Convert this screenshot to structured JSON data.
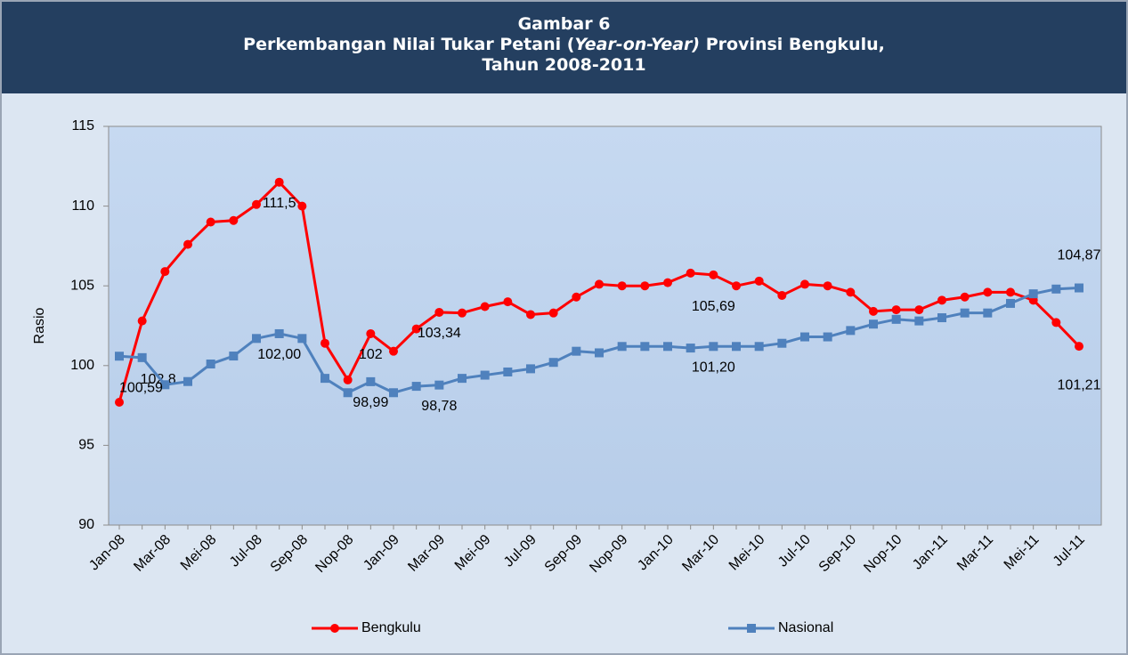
{
  "chart_data": {
    "type": "line",
    "title": [
      "Gambar 6",
      "Perkembangan Nilai Tukar Petani (",
      "Year-on-Year)",
      " Provinsi Bengkulu,",
      "Tahun 2008-2011"
    ],
    "y_label": "Rasio",
    "categories": [
      "Jan-08",
      null,
      "Mar-08",
      null,
      "Mei-08",
      null,
      "Jul-08",
      null,
      "Sep-08",
      null,
      "Nop-08",
      null,
      "Jan-09",
      null,
      "Mar-09",
      null,
      "Mei-09",
      null,
      "Jul-09",
      null,
      "Sep-09",
      null,
      "Nop-09",
      null,
      "Jan-10",
      null,
      "Mar-10",
      null,
      "Mei-10",
      null,
      "Jul-10",
      null,
      "Sep-10",
      null,
      "Nop-10",
      null,
      "Jan-11",
      null,
      "Mar-11",
      null,
      "Mei-11",
      null,
      "Jul-11"
    ],
    "series": [
      {
        "name": "Bengkulu",
        "color": "#ff0000",
        "marker": "circle",
        "values": [
          97.7,
          102.8,
          105.9,
          107.6,
          109.0,
          109.1,
          110.1,
          111.5,
          110.0,
          101.4,
          99.1,
          102,
          100.9,
          102.3,
          103.34,
          103.3,
          103.7,
          104.0,
          103.2,
          103.3,
          104.3,
          105.1,
          105.0,
          105.0,
          105.2,
          105.8,
          105.69,
          105.0,
          105.3,
          104.4,
          105.1,
          105.0,
          104.6,
          103.4,
          103.5,
          103.5,
          104.1,
          104.3,
          104.6,
          104.6,
          104.1,
          102.7,
          101.21
        ],
        "value_labels": [
          null,
          "102,8",
          null,
          null,
          null,
          null,
          null,
          "111,5",
          null,
          null,
          null,
          "102",
          null,
          null,
          "103,34",
          null,
          null,
          null,
          null,
          null,
          null,
          null,
          null,
          null,
          null,
          null,
          "105,69",
          null,
          null,
          null,
          null,
          null,
          null,
          null,
          null,
          null,
          null,
          null,
          null,
          null,
          null,
          null,
          "101,21"
        ]
      },
      {
        "name": "Nasional",
        "color": "#4f81bd",
        "marker": "square",
        "values": [
          100.59,
          100.5,
          98.8,
          99.0,
          100.1,
          100.6,
          101.7,
          102.0,
          101.7,
          99.2,
          98.3,
          98.99,
          98.3,
          98.7,
          98.78,
          99.2,
          99.4,
          99.6,
          99.8,
          100.2,
          100.9,
          100.8,
          101.2,
          101.2,
          101.2,
          101.1,
          101.2,
          101.2,
          101.2,
          101.4,
          101.8,
          101.8,
          102.2,
          102.6,
          102.9,
          102.8,
          103.0,
          103.3,
          103.3,
          103.9,
          104.5,
          104.8,
          104.87
        ],
        "value_labels": [
          "100,59",
          null,
          null,
          null,
          null,
          null,
          null,
          "102,00",
          null,
          null,
          null,
          "98,99",
          null,
          null,
          "98,78",
          null,
          null,
          null,
          null,
          null,
          null,
          null,
          null,
          null,
          null,
          null,
          "101,20",
          null,
          null,
          null,
          null,
          null,
          null,
          null,
          null,
          null,
          null,
          null,
          null,
          null,
          null,
          null,
          "104,87"
        ]
      }
    ],
    "ylim": [
      90,
      115
    ],
    "yticks": [
      90,
      95,
      100,
      105,
      110,
      115
    ],
    "grid": false
  }
}
